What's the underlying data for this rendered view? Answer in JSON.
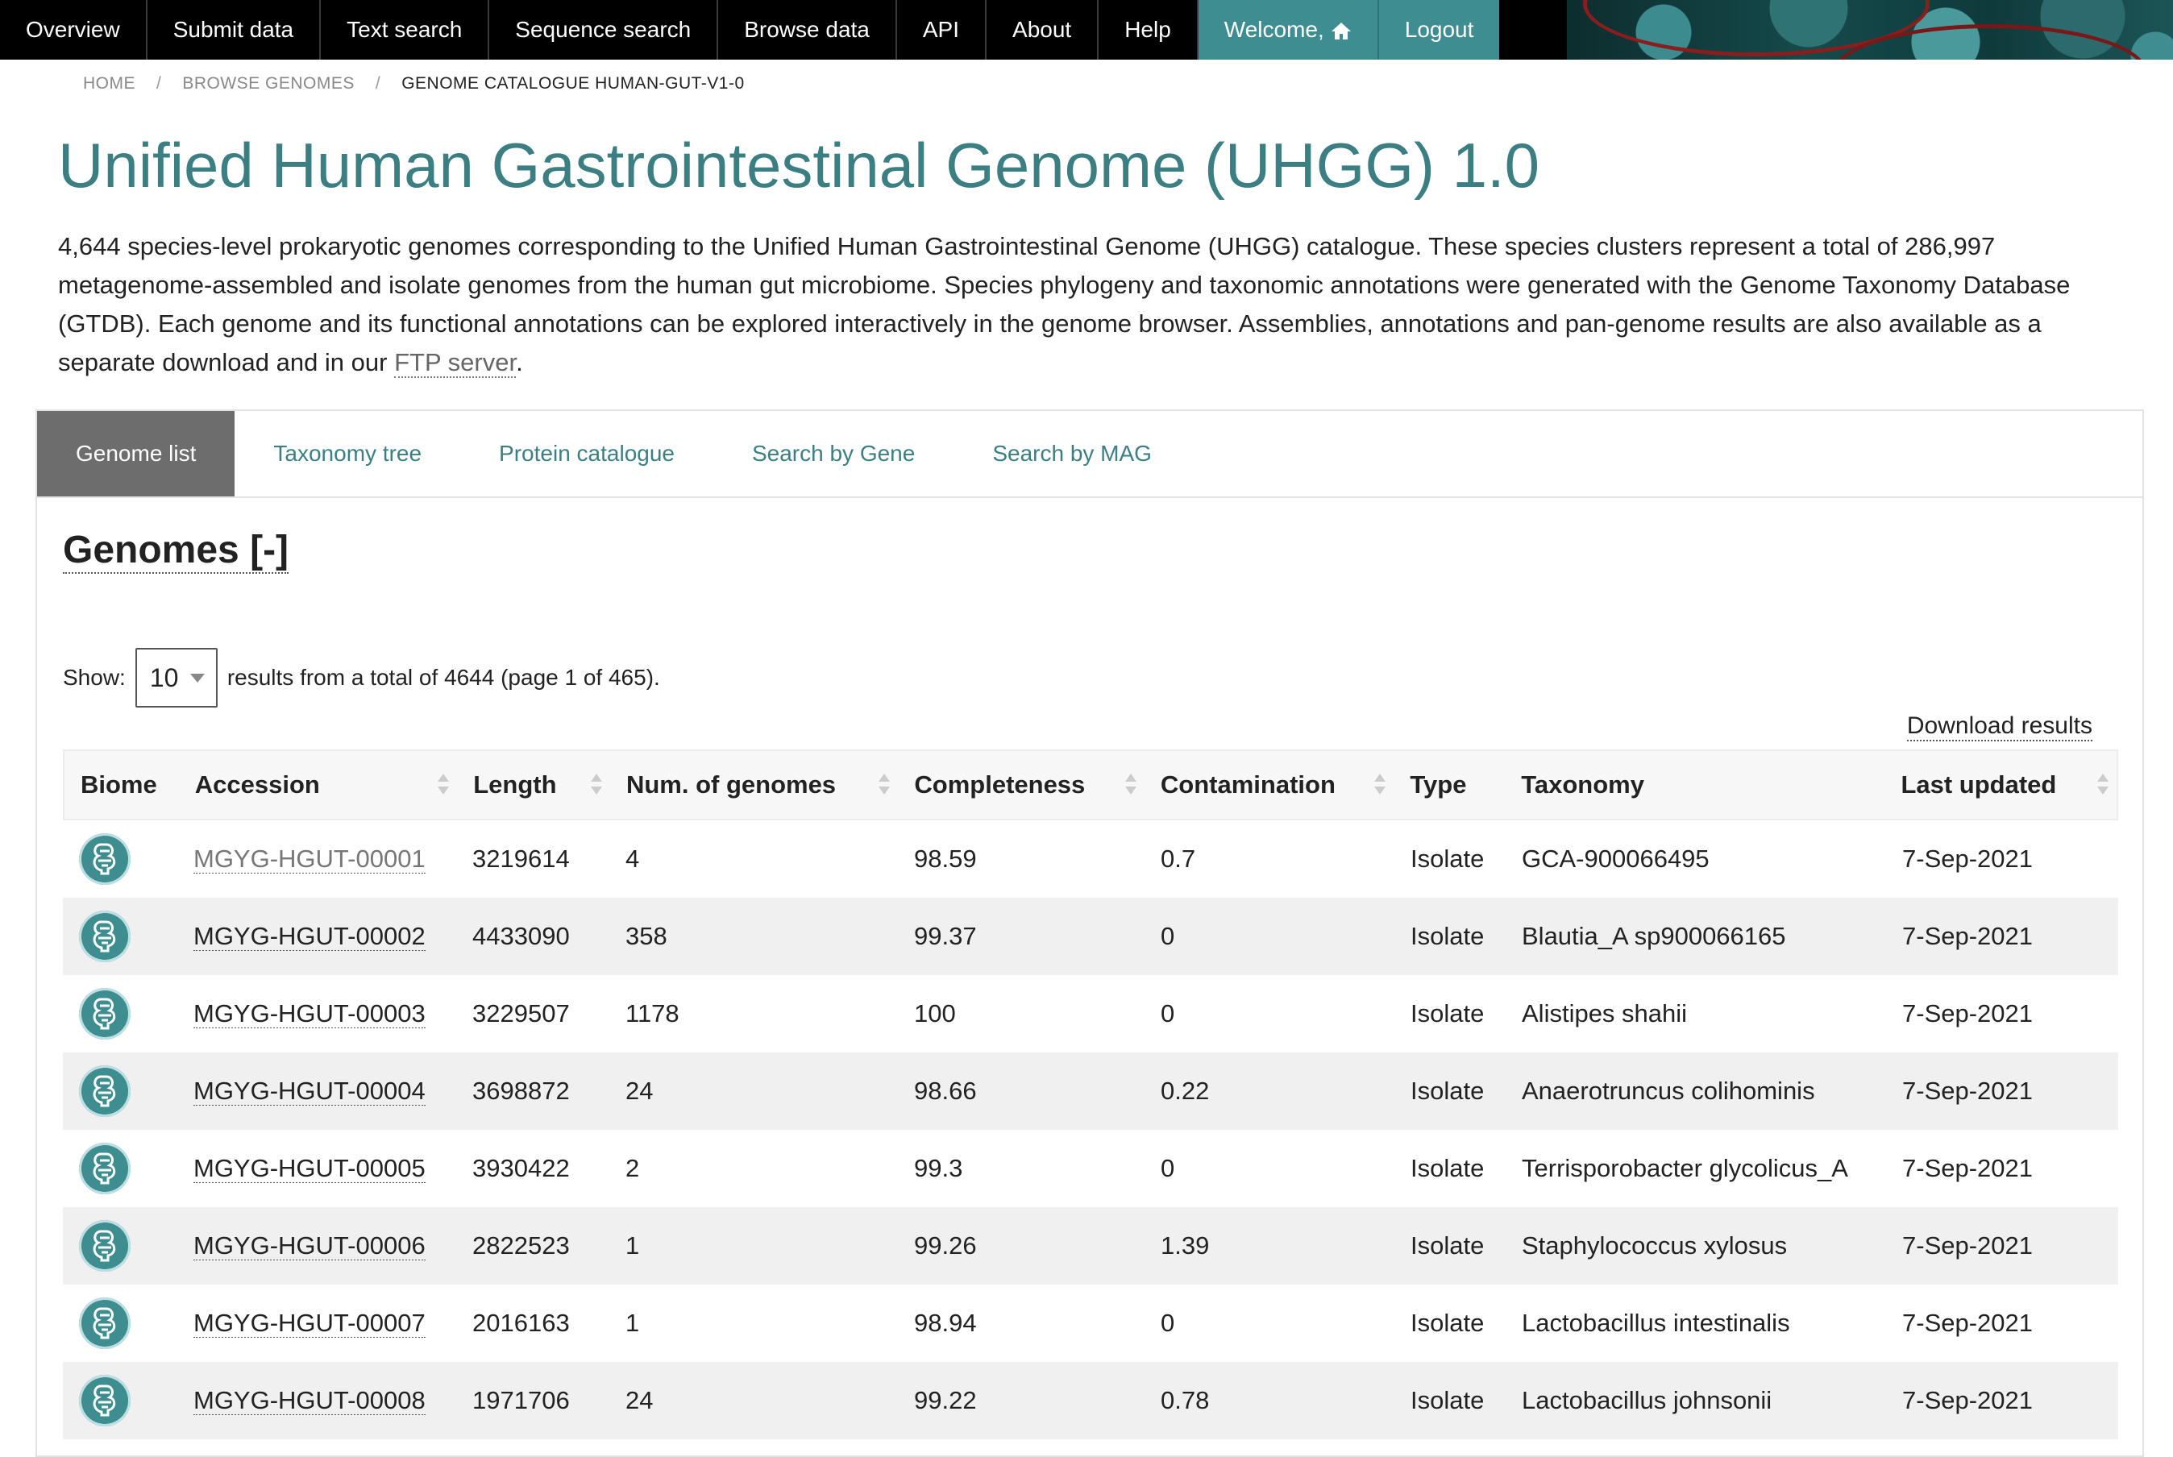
{
  "nav": {
    "items": [
      "Overview",
      "Submit data",
      "Text search",
      "Sequence search",
      "Browse data",
      "API",
      "About",
      "Help"
    ],
    "welcome": "Welcome,",
    "logout": "Logout"
  },
  "breadcrumb": {
    "home": "HOME",
    "browse": "BROWSE GENOMES",
    "current": "GENOME CATALOGUE HUMAN-GUT-V1-0"
  },
  "title": "Unified Human Gastrointestinal Genome (UHGG) 1.0",
  "intro": {
    "text": "4,644 species-level prokaryotic genomes corresponding to the Unified Human Gastrointestinal Genome (UHGG) catalogue. These species clusters represent a total of 286,997 metagenome-assembled and isolate genomes from the human gut microbiome. Species phylogeny and taxonomic annotations were generated with the Genome Taxonomy Database (GTDB). Each genome and its functional annotations can be explored interactively in the genome browser. Assemblies, annotations and pan-genome results are also available as a separate download and in our ",
    "link": "FTP server",
    "end": "."
  },
  "tabs": [
    "Genome list",
    "Taxonomy tree",
    "Protein catalogue",
    "Search by Gene",
    "Search by MAG"
  ],
  "section": {
    "title": "Genomes [-]",
    "show_label": "Show:",
    "page_size": "10",
    "results_text": "results from a total of 4644 (page 1 of 465).",
    "download": "Download results"
  },
  "table": {
    "headers": [
      "Biome",
      "Accession",
      "Length",
      "Num. of genomes",
      "Completeness",
      "Contamination",
      "Type",
      "Taxonomy",
      "Last updated"
    ],
    "rows": [
      {
        "accession": "MGYG-HGUT-00001",
        "length": "3219614",
        "num": "4",
        "completeness": "98.59",
        "contamination": "0.7",
        "type": "Isolate",
        "taxonomy": "GCA-900066495",
        "updated": "7-Sep-2021"
      },
      {
        "accession": "MGYG-HGUT-00002",
        "length": "4433090",
        "num": "358",
        "completeness": "99.37",
        "contamination": "0",
        "type": "Isolate",
        "taxonomy": "Blautia_A sp900066165",
        "updated": "7-Sep-2021"
      },
      {
        "accession": "MGYG-HGUT-00003",
        "length": "3229507",
        "num": "1178",
        "completeness": "100",
        "contamination": "0",
        "type": "Isolate",
        "taxonomy": "Alistipes shahii",
        "updated": "7-Sep-2021"
      },
      {
        "accession": "MGYG-HGUT-00004",
        "length": "3698872",
        "num": "24",
        "completeness": "98.66",
        "contamination": "0.22",
        "type": "Isolate",
        "taxonomy": "Anaerotruncus colihominis",
        "updated": "7-Sep-2021"
      },
      {
        "accession": "MGYG-HGUT-00005",
        "length": "3930422",
        "num": "2",
        "completeness": "99.3",
        "contamination": "0",
        "type": "Isolate",
        "taxonomy": "Terrisporobacter glycolicus_A",
        "updated": "7-Sep-2021"
      },
      {
        "accession": "MGYG-HGUT-00006",
        "length": "2822523",
        "num": "1",
        "completeness": "99.26",
        "contamination": "1.39",
        "type": "Isolate",
        "taxonomy": "Staphylococcus xylosus",
        "updated": "7-Sep-2021"
      },
      {
        "accession": "MGYG-HGUT-00007",
        "length": "2016163",
        "num": "1",
        "completeness": "98.94",
        "contamination": "0",
        "type": "Isolate",
        "taxonomy": "Lactobacillus intestinalis",
        "updated": "7-Sep-2021"
      },
      {
        "accession": "MGYG-HGUT-00008",
        "length": "1971706",
        "num": "24",
        "completeness": "99.22",
        "contamination": "0.78",
        "type": "Isolate",
        "taxonomy": "Lactobacillus johnsonii",
        "updated": "7-Sep-2021"
      }
    ]
  },
  "colors": {
    "accent": "#3e8d91",
    "title": "#3c7f83",
    "active_tab": "#6d6d6d"
  },
  "icons": {
    "home": "home-icon",
    "biome": "human-gut-biome-icon"
  }
}
